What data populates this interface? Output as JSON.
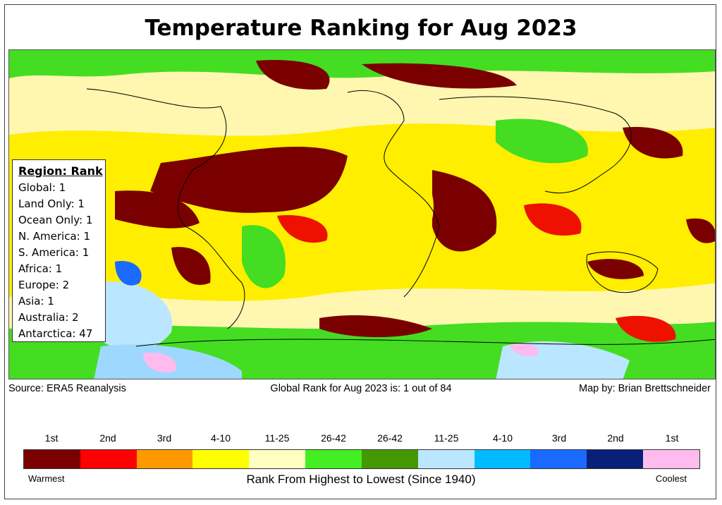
{
  "title": "Temperature Ranking for Aug 2023",
  "region_box": {
    "header": "Region: Rank",
    "rows": [
      "Global: 1",
      "Land Only: 1",
      "Ocean Only: 1",
      "N. America: 1",
      "S. America: 1",
      "Africa: 1",
      "Europe: 2",
      "Asia: 1",
      "Australia: 2",
      "Antarctica: 47"
    ]
  },
  "source": "Source: ERA5 Reanalysis",
  "global_rank_text": "Global Rank for Aug 2023 is: 1 out of 84",
  "credit": "Map by: Brian Brettschneider",
  "legend": {
    "labels": [
      "1st",
      "2nd",
      "3rd",
      "4-10",
      "11-25",
      "26-42",
      "26-42",
      "11-25",
      "4-10",
      "3rd",
      "2nd",
      "1st"
    ],
    "colors": [
      "#7a0000",
      "#ff0000",
      "#ff9900",
      "#ffff00",
      "#ffffc0",
      "#44ee22",
      "#449900",
      "#bbe6ff",
      "#00bbff",
      "#1a6aff",
      "#0a1f78",
      "#ffbbee"
    ],
    "left_end": "Warmest",
    "right_end": "Coolest",
    "axis_title": "Rank From Highest to Lowest (Since 1940)"
  }
}
